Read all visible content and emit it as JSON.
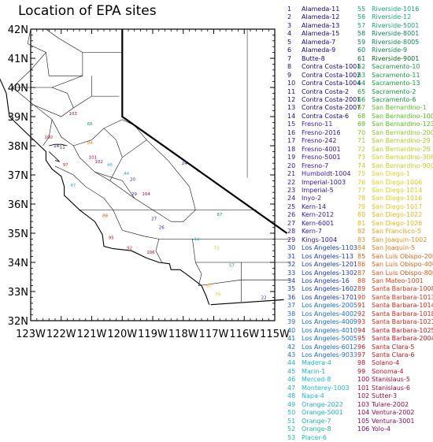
{
  "title": "Location of EPA sites",
  "axes": {
    "x_ticks": [
      "123W",
      "122W",
      "121W",
      "120W",
      "119W",
      "118W",
      "117W",
      "116W",
      "115W"
    ],
    "y_ticks": [
      "42N",
      "41N",
      "40N",
      "39N",
      "38N",
      "37N",
      "36N",
      "35N",
      "34N",
      "33N",
      "32N"
    ],
    "lon_range": [
      -123,
      -115
    ],
    "lat_range": [
      32,
      42
    ]
  },
  "sites": [
    {
      "n": 1,
      "name": "Alameda-11",
      "color": "#1a0a8c"
    },
    {
      "n": 2,
      "name": "Alameda-12",
      "color": "#1a0a8c"
    },
    {
      "n": 3,
      "name": "Alameda-13",
      "color": "#1a0a8c"
    },
    {
      "n": 4,
      "name": "Alameda-15",
      "color": "#1a0a8c"
    },
    {
      "n": 5,
      "name": "Alameda-7",
      "color": "#1a0a8c"
    },
    {
      "n": 6,
      "name": "Alameda-9",
      "color": "#1a0a8c"
    },
    {
      "n": 7,
      "name": "Butte-8",
      "color": "#1a0a8c"
    },
    {
      "n": 8,
      "name": "Contra Costa-1001",
      "color": "#1a0a8c"
    },
    {
      "n": 9,
      "name": "Contra Costa-1002",
      "color": "#1a0a8c"
    },
    {
      "n": 10,
      "name": "Contra Costa-1004",
      "color": "#1a0a8c"
    },
    {
      "n": 11,
      "name": "Contra Costa-2",
      "color": "#1a0a8c"
    },
    {
      "n": 12,
      "name": "Contra Costa-2001",
      "color": "#1a0a8c"
    },
    {
      "n": 13,
      "name": "Contra Costa-2007",
      "color": "#1a0a8c"
    },
    {
      "n": 14,
      "name": "Contra Costa-6",
      "color": "#1a0a8c"
    },
    {
      "n": 15,
      "name": "Fresno-11",
      "color": "#3a14a8"
    },
    {
      "n": 16,
      "name": "Fresno-2016",
      "color": "#3a14a8"
    },
    {
      "n": 17,
      "name": "Fresno-242",
      "color": "#3a14a8"
    },
    {
      "n": 18,
      "name": "Fresno-4001",
      "color": "#3a14a8"
    },
    {
      "n": 19,
      "name": "Fresno-5001",
      "color": "#3a14a8"
    },
    {
      "n": 20,
      "name": "Fresno-7",
      "color": "#3a14a8"
    },
    {
      "n": 21,
      "name": "Humboldt-1004",
      "color": "#3a14a8"
    },
    {
      "n": 22,
      "name": "Imperial-1003",
      "color": "#3a14a8"
    },
    {
      "n": 23,
      "name": "Imperial-5",
      "color": "#3a14a8"
    },
    {
      "n": 24,
      "name": "Inyo-2",
      "color": "#3a14a8"
    },
    {
      "n": 25,
      "name": "Kern-14",
      "color": "#3a14a8"
    },
    {
      "n": 26,
      "name": "Kern-2012",
      "color": "#3a14a8"
    },
    {
      "n": 27,
      "name": "Kern-6001",
      "color": "#3a14a8"
    },
    {
      "n": 28,
      "name": "Kern-7",
      "color": "#3a14a8"
    },
    {
      "n": 29,
      "name": "Kings-1004",
      "color": "#3a14a8"
    },
    {
      "n": 30,
      "name": "Los Angeles-1103",
      "color": "#1f3fd0"
    },
    {
      "n": 31,
      "name": "Los Angeles-113",
      "color": "#1f3fd0"
    },
    {
      "n": 32,
      "name": "Los Angeles-1201",
      "color": "#1f3fd0"
    },
    {
      "n": 33,
      "name": "Los Angeles-1302",
      "color": "#1f3fd0"
    },
    {
      "n": 34,
      "name": "Los Angeles-16",
      "color": "#1f3fd0"
    },
    {
      "n": 35,
      "name": "Los Angeles-1602",
      "color": "#1f3fd0"
    },
    {
      "n": 36,
      "name": "Los Angeles-1701",
      "color": "#1f3fd0"
    },
    {
      "n": 37,
      "name": "Los Angeles-2005",
      "color": "#1f6fe0"
    },
    {
      "n": 38,
      "name": "Los Angeles-4002",
      "color": "#1f6fe0"
    },
    {
      "n": 39,
      "name": "Los Angeles-4009",
      "color": "#1f6fe0"
    },
    {
      "n": 40,
      "name": "Los Angeles-4010",
      "color": "#1f6fe0"
    },
    {
      "n": 41,
      "name": "Los Angeles-5005",
      "color": "#1f6fe0"
    },
    {
      "n": 42,
      "name": "Los Angeles-6012",
      "color": "#1f6fe0"
    },
    {
      "n": 43,
      "name": "Los Angeles-9033",
      "color": "#1f6fe0"
    },
    {
      "n": 44,
      "name": "Madera-4",
      "color": "#20b8d8"
    },
    {
      "n": 45,
      "name": "Marin-1",
      "color": "#20b8d8"
    },
    {
      "n": 46,
      "name": "Merced-8",
      "color": "#20b8d8"
    },
    {
      "n": 47,
      "name": "Monterey-1003",
      "color": "#20b8d8"
    },
    {
      "n": 48,
      "name": "Napa-4",
      "color": "#20b8d8"
    },
    {
      "n": 49,
      "name": "Orange-2022",
      "color": "#20b8d8"
    },
    {
      "n": 50,
      "name": "Orange-5001",
      "color": "#20b8d8"
    },
    {
      "n": 51,
      "name": "Orange-7",
      "color": "#20c0a8"
    },
    {
      "n": 52,
      "name": "Orange-8",
      "color": "#20c0a8"
    },
    {
      "n": 53,
      "name": "Placer-6",
      "color": "#20c0a8"
    },
    {
      "n": 55,
      "name": "Riverside-1016",
      "color": "#18a878"
    },
    {
      "n": 56,
      "name": "Riverside-12",
      "color": "#18a878"
    },
    {
      "n": 57,
      "name": "Riverside-5001",
      "color": "#18a878"
    },
    {
      "n": 58,
      "name": "Riverside-8001",
      "color": "#108858"
    },
    {
      "n": 59,
      "name": "Riverside-8005",
      "color": "#108858"
    },
    {
      "n": 60,
      "name": "Riverside-9",
      "color": "#108858"
    },
    {
      "n": 61,
      "name": "Riverside-9001",
      "color": "#0a6a2a"
    },
    {
      "n": 62,
      "name": "Sacramento-10",
      "color": "#18a040"
    },
    {
      "n": 63,
      "name": "Sacramento-11",
      "color": "#18a040"
    },
    {
      "n": 64,
      "name": "Sacramento-13",
      "color": "#18a040"
    },
    {
      "n": 65,
      "name": "Sacramento-2",
      "color": "#18a040"
    },
    {
      "n": 66,
      "name": "Sacramento-6",
      "color": "#18a040"
    },
    {
      "n": 67,
      "name": "San Bernardino-1",
      "color": "#58c020"
    },
    {
      "n": 68,
      "name": "San Bernardino-1004",
      "color": "#58c020"
    },
    {
      "n": 69,
      "name": "San Bernardino-1234",
      "color": "#58c020"
    },
    {
      "n": 70,
      "name": "San Bernardino-2002",
      "color": "#8cc820"
    },
    {
      "n": 71,
      "name": "San Bernardino-29",
      "color": "#a8d020"
    },
    {
      "n": 72,
      "name": "San Bernardino-25",
      "color": "#b8d020"
    },
    {
      "n": 73,
      "name": "San Bernardino-306",
      "color": "#c8d020"
    },
    {
      "n": 74,
      "name": "San Bernardino-9004",
      "color": "#c8d020"
    },
    {
      "n": 75,
      "name": "San Diego-1",
      "color": "#e0d020"
    },
    {
      "n": 76,
      "name": "San Diego-1006",
      "color": "#e0d020"
    },
    {
      "n": 77,
      "name": "San Diego-1014",
      "color": "#e0d020"
    },
    {
      "n": 78,
      "name": "San Diego-1016",
      "color": "#e8c818"
    },
    {
      "n": 79,
      "name": "San Diego-1017",
      "color": "#e8c818"
    },
    {
      "n": 80,
      "name": "San Diego-1022",
      "color": "#e8b818"
    },
    {
      "n": 81,
      "name": "San Diego-1026",
      "color": "#e8b818"
    },
    {
      "n": 82,
      "name": "San Francisco-5",
      "color": "#e8a018"
    },
    {
      "n": 83,
      "name": "San Joaquin-1002",
      "color": "#e89018"
    },
    {
      "n": 84,
      "name": "San Joaquin-5",
      "color": "#e88018"
    },
    {
      "n": 85,
      "name": "San Luis Obispo-2004",
      "color": "#e06818"
    },
    {
      "n": 86,
      "name": "San Luis Obispo-4002",
      "color": "#e06818"
    },
    {
      "n": 87,
      "name": "San Luis Obispo-8002",
      "color": "#e05818"
    },
    {
      "n": 88,
      "name": "San Mateo-1001",
      "color": "#e04818"
    },
    {
      "n": 89,
      "name": "Santa Barbara-1008",
      "color": "#e03818"
    },
    {
      "n": 90,
      "name": "Santa Barbara-1013",
      "color": "#e03818"
    },
    {
      "n": 91,
      "name": "Santa Barbara-1014",
      "color": "#d82818"
    },
    {
      "n": 92,
      "name": "Santa Barbara-1018",
      "color": "#d82818"
    },
    {
      "n": 93,
      "name": "Santa Barbara-1021",
      "color": "#d82818"
    },
    {
      "n": 94,
      "name": "Santa Barbara-1025",
      "color": "#d01818"
    },
    {
      "n": 95,
      "name": "Santa Barbara-2004",
      "color": "#d01818"
    },
    {
      "n": 96,
      "name": "Santa Clara-5",
      "color": "#d01818"
    },
    {
      "n": 97,
      "name": "Santa Clara-6",
      "color": "#d01818"
    },
    {
      "n": 98,
      "name": "Solano-4",
      "color": "#c81020"
    },
    {
      "n": 99,
      "name": "Sonoma-4",
      "color": "#c01028"
    },
    {
      "n": 100,
      "name": "Stanislaus-5",
      "color": "#b80830"
    },
    {
      "n": 101,
      "name": "Stanislaus-6",
      "color": "#b00838"
    },
    {
      "n": 102,
      "name": "Sutter-3",
      "color": "#a80840"
    },
    {
      "n": 103,
      "name": "Tulare-2002",
      "color": "#a00848"
    },
    {
      "n": 104,
      "name": "Ventura-2002",
      "color": "#980850"
    },
    {
      "n": 105,
      "name": "Ventura-3001",
      "color": "#900858"
    },
    {
      "n": 106,
      "name": "Yolo-4",
      "color": "#880860"
    }
  ],
  "map_labels": [
    {
      "t": "100",
      "lon": -122.55,
      "lat": 38.25,
      "c": "#c01028"
    },
    {
      "t": "103",
      "lon": -121.75,
      "lat": 39.05,
      "c": "#a80840"
    },
    {
      "t": "66",
      "lon": -121.15,
      "lat": 38.7,
      "c": "#18a040"
    },
    {
      "t": "84",
      "lon": -121.15,
      "lat": 38.05,
      "c": "#e88018"
    },
    {
      "t": "14",
      "lon": -122.25,
      "lat": 37.95,
      "c": "#1a0a8c"
    },
    {
      "t": "11",
      "lon": -122.05,
      "lat": 37.9,
      "c": "#1a0a8c"
    },
    {
      "t": "101",
      "lon": -121.1,
      "lat": 37.55,
      "c": "#b00838"
    },
    {
      "t": "102",
      "lon": -120.9,
      "lat": 37.4,
      "c": "#a80840"
    },
    {
      "t": "46",
      "lon": -120.5,
      "lat": 37.3,
      "c": "#20b8d8"
    },
    {
      "t": "97",
      "lon": -121.95,
      "lat": 37.3,
      "c": "#d01818"
    },
    {
      "t": "47",
      "lon": -121.7,
      "lat": 36.6,
      "c": "#20b8d8"
    },
    {
      "t": "44",
      "lon": -119.95,
      "lat": 37.0,
      "c": "#20b8d8"
    },
    {
      "t": "20",
      "lon": -119.75,
      "lat": 36.8,
      "c": "#3a14a8"
    },
    {
      "t": "29",
      "lon": -119.7,
      "lat": 36.3,
      "c": "#3a14a8"
    },
    {
      "t": "104",
      "lon": -119.35,
      "lat": 36.3,
      "c": "#a00848"
    },
    {
      "t": "24",
      "lon": -118.05,
      "lat": 37.35,
      "c": "#3a14a8"
    },
    {
      "t": "27",
      "lon": -119.05,
      "lat": 35.45,
      "c": "#3a14a8"
    },
    {
      "t": "26",
      "lon": -118.8,
      "lat": 35.15,
      "c": "#3a14a8"
    },
    {
      "t": "88",
      "lon": -120.65,
      "lat": 35.55,
      "c": "#e05818"
    },
    {
      "t": "87",
      "lon": -116.9,
      "lat": 35.6,
      "c": "#18a040"
    },
    {
      "t": "95",
      "lon": -120.45,
      "lat": 34.8,
      "c": "#d01818"
    },
    {
      "t": "92",
      "lon": -119.85,
      "lat": 34.45,
      "c": "#d82818"
    },
    {
      "t": "106",
      "lon": -119.2,
      "lat": 34.3,
      "c": "#900858"
    },
    {
      "t": "44",
      "lon": -117.65,
      "lat": 34.75,
      "c": "#20b8d8"
    },
    {
      "t": "73",
      "lon": -117.0,
      "lat": 34.45,
      "c": "#c8d020"
    },
    {
      "t": "57",
      "lon": -116.5,
      "lat": 33.85,
      "c": "#18a878"
    },
    {
      "t": "80",
      "lon": -117.25,
      "lat": 33.15,
      "c": "#e8b818"
    },
    {
      "t": "79",
      "lon": -116.95,
      "lat": 32.85,
      "c": "#e8c818"
    },
    {
      "t": "22",
      "lon": -115.45,
      "lat": 32.75,
      "c": "#3a14a8"
    }
  ]
}
